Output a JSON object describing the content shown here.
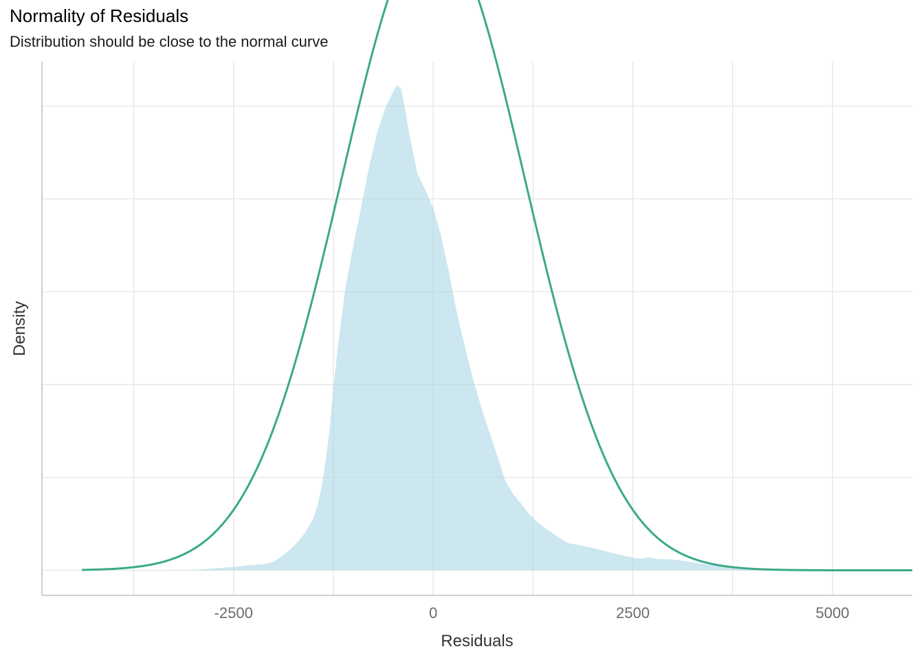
{
  "chart_data": {
    "type": "area",
    "title": "Normality of Residuals",
    "subtitle": "Distribution should be close to the normal curve",
    "xlabel": "Residuals",
    "ylabel": "Density",
    "xlim": [
      -4900,
      6000
    ],
    "ylim": [
      -1.35e-05,
      0.0002738
    ],
    "x_ticks": [
      -2500,
      0,
      2500,
      5000
    ],
    "x_tick_labels": [
      "-2500",
      "0",
      "2500",
      "5000"
    ],
    "y_tick_labels": [],
    "grid": true,
    "colors": {
      "density_fill": "#add8e6",
      "normal_curve": "#3aaa85",
      "grid": "#e5e5e5",
      "axis": "#b3b3b3"
    },
    "series": [
      {
        "type": "area",
        "x": [
          -4500,
          -3000,
          -2500,
          -2300,
          -2100,
          -2000,
          -1900,
          -1800,
          -1700,
          -1600,
          -1500,
          -1450,
          -1400,
          -1350,
          -1300,
          -1250,
          -1200,
          -1100,
          -1000,
          -900,
          -800,
          -700,
          -600,
          -500,
          -450,
          -400,
          -350,
          -300,
          -200,
          -100,
          0,
          100,
          200,
          300,
          400,
          500,
          600,
          700,
          800,
          900,
          1000,
          1100,
          1200,
          1300,
          1400,
          1500,
          1600,
          1700,
          1800,
          2000,
          2200,
          2400,
          2500,
          2600,
          2700,
          2800,
          3000,
          3200,
          3400,
          3600,
          3800,
          4000,
          4200,
          4500,
          4800,
          5000,
          5500,
          5900
        ],
        "y": [
          0,
          2e-07,
          1.8e-06,
          2.8e-06,
          3.4e-06,
          4.5e-06,
          7.5e-06,
          1.1e-05,
          1.5e-05,
          2.05e-05,
          2.8e-05,
          3.5e-05,
          4.4e-05,
          5.8e-05,
          7.5e-05,
          9.8e-05,
          0.000118,
          0.000152,
          0.000175,
          0.000196,
          0.000218,
          0.000236,
          0.000249,
          0.000258,
          0.0002615,
          0.000259,
          0.000248,
          0.000235,
          0.000214,
          0.000205,
          0.000195,
          0.00018,
          0.00016,
          0.000138,
          0.00012,
          0.000103,
          8.8e-05,
          7.5e-05,
          6.2e-05,
          4.85e-05,
          4.1e-05,
          3.6e-05,
          3.05e-05,
          2.62e-05,
          2.28e-05,
          1.98e-05,
          1.68e-05,
          1.45e-05,
          1.38e-05,
          1.2e-05,
          9.8e-06,
          7.8e-06,
          6.8e-06,
          6.2e-06,
          7e-06,
          6.1e-06,
          5.8e-06,
          4.7e-06,
          3.3e-06,
          2.2e-06,
          1.4e-06,
          1e-06,
          6e-07,
          3e-07,
          1e-07,
          0,
          0,
          0
        ]
      },
      {
        "type": "line",
        "mean": 0,
        "sd": 1149,
        "x_range": [
          -4400,
          6000
        ]
      }
    ]
  }
}
